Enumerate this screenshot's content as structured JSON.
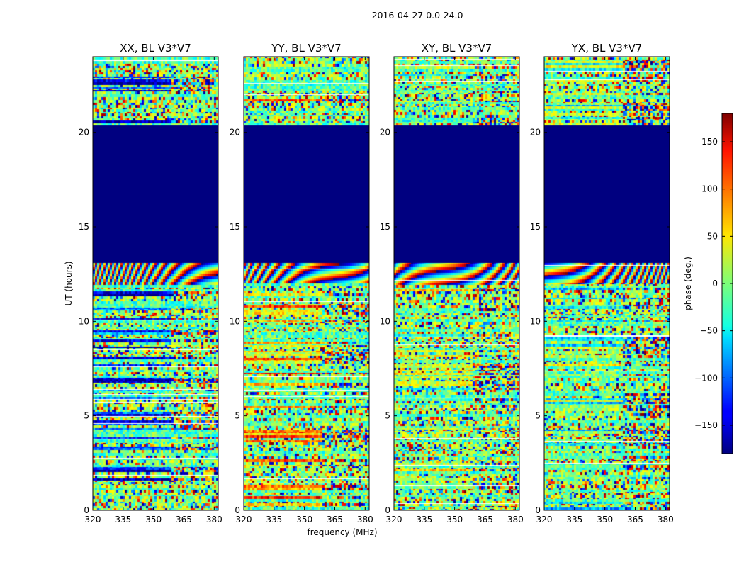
{
  "figure": {
    "suptitle": "2016-04-27 0.0-24.0",
    "xlabel": "frequency (MHz)",
    "ylabel": "UT (hours)",
    "colorbar_label": "phase (deg.)"
  },
  "chart_data": {
    "type": "heatmap",
    "title": "2016-04-27 0.0-24.0",
    "xlabel": "frequency (MHz)",
    "ylabel": "UT (hours)",
    "xlim": [
      320,
      382
    ],
    "ylim": [
      0,
      24
    ],
    "x_ticks": [
      320,
      335,
      350,
      365,
      380
    ],
    "y_ticks": [
      0,
      5,
      10,
      15,
      20
    ],
    "colormap": "jet",
    "colorbar": {
      "label": "phase (deg.)",
      "range": [
        -180,
        180
      ],
      "ticks": [
        150,
        100,
        50,
        0,
        -50,
        -100,
        -150
      ],
      "tick_labels": [
        "150",
        "100",
        "50",
        "0",
        "−50",
        "−100",
        "−150"
      ]
    },
    "panels": [
      {
        "title": "XX, BL V3*V7",
        "polarization": "XX",
        "baseline": "BL V3*V7"
      },
      {
        "title": "YY, BL V3*V7",
        "polarization": "YY",
        "baseline": "BL V3*V7"
      },
      {
        "title": "XY, BL V3*V7",
        "polarization": "XY",
        "baseline": "BL V3*V7"
      },
      {
        "title": "YX, BL V3*V7",
        "polarization": "YX",
        "baseline": "BL V3*V7"
      }
    ],
    "flagged_time_range_hours": [
      13.1,
      20.4
    ],
    "flagged_value_deg": -180,
    "fringe_band_hours": [
      12.0,
      13.1
    ],
    "colors": {
      "flagged": "#00007f",
      "gap": "#ffffff"
    }
  }
}
